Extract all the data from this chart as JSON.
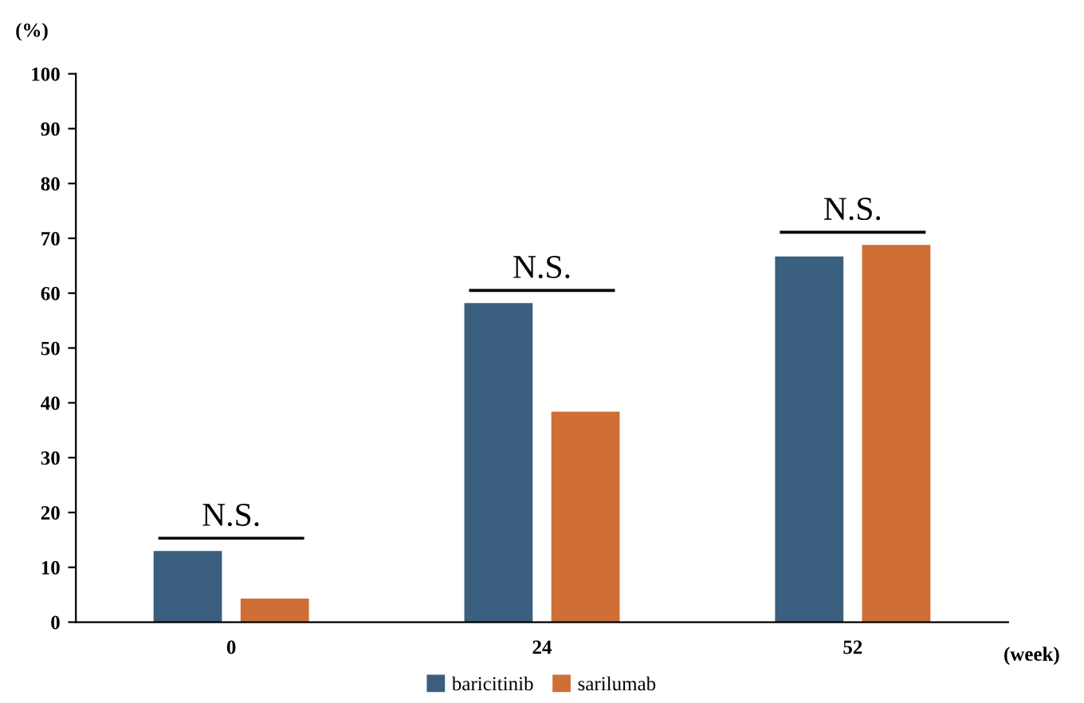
{
  "chart_data": {
    "type": "bar",
    "xlabel": "(week)",
    "ylabel": "(%)",
    "categories": [
      "0",
      "24",
      "52"
    ],
    "series": [
      {
        "name": "baricitinib",
        "color": "#3a5f7f",
        "values": [
          13,
          58.2,
          66.7
        ]
      },
      {
        "name": "sarilumab",
        "color": "#cf6f36",
        "values": [
          4.3,
          38.4,
          68.8
        ]
      }
    ],
    "ylim": [
      0,
      100
    ],
    "yticks": [
      0,
      10,
      20,
      30,
      40,
      50,
      60,
      70,
      80,
      90,
      100
    ],
    "annotations": [
      "N.S.",
      "N.S.",
      "N.S."
    ],
    "grid": false,
    "legend": "bottom"
  }
}
